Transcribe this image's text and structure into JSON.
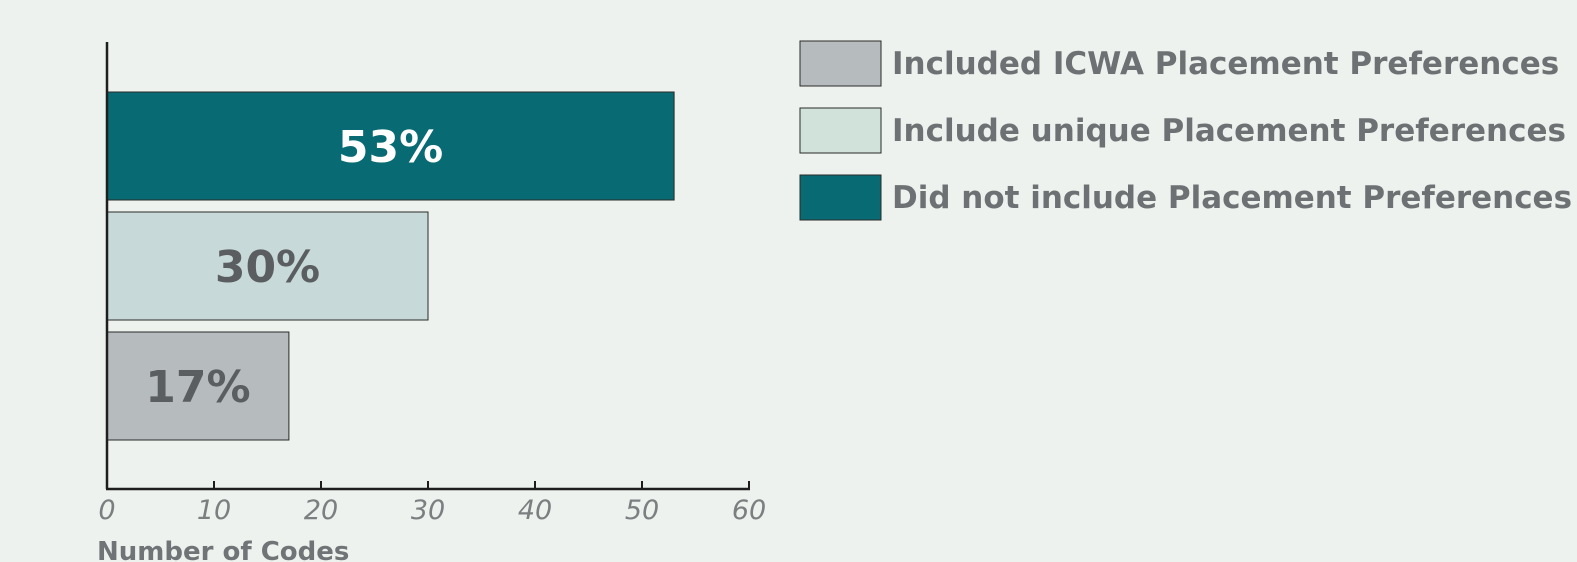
{
  "chart_data": {
    "type": "bar",
    "orientation": "horizontal",
    "xlabel": "Number of Codes",
    "xlim": [
      0,
      60
    ],
    "xticks": [
      "0",
      "10",
      "20",
      "30",
      "40",
      "50",
      "60"
    ],
    "grid": false,
    "legend_position": "top-right",
    "series": [
      {
        "name": "Did not include Placement Preferences",
        "value": 53,
        "label": "53%",
        "color": "#086a72",
        "label_color": "#ffffff"
      },
      {
        "name": "Include unique Placement Preferences",
        "value": 30,
        "label": "30%",
        "color": "#c7d9d8",
        "label_color": "#5b5e60"
      },
      {
        "name": "Included ICWA Placement Preferences",
        "value": 17,
        "label": "17%",
        "color": "#b6bbbe",
        "label_color": "#5b5e60"
      }
    ],
    "legend": [
      {
        "label": "Included ICWA Placement Preferences",
        "color": "#b6bbbe"
      },
      {
        "label": "Include unique Placement Preferences",
        "color": "#d0e2d9"
      },
      {
        "label": "Did not include Placement Preferences",
        "color": "#086a72"
      }
    ]
  }
}
